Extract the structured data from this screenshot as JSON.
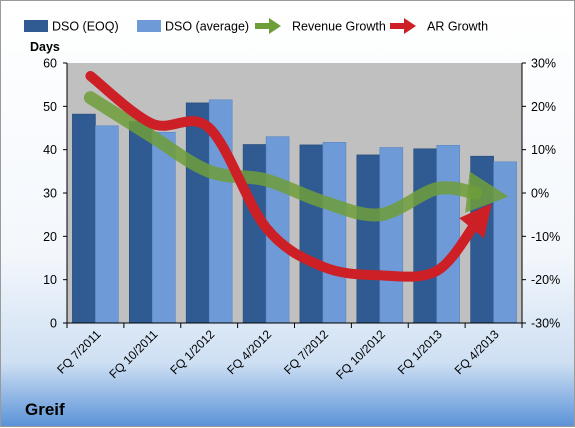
{
  "chart_data": {
    "type": "bar",
    "categories": [
      "FQ 7/2011",
      "FQ 10/2011",
      "FQ 1/2012",
      "FQ 4/2012",
      "FQ 7/2012",
      "FQ 10/2012",
      "FQ 1/2013",
      "FQ 4/2013"
    ],
    "series": [
      {
        "name": "DSO (EOQ)",
        "type": "bar",
        "axis": "left",
        "color": "#2f5b92",
        "values": [
          48.2,
          46.5,
          50.8,
          41.2,
          41.1,
          38.8,
          40.2,
          38.5
        ]
      },
      {
        "name": "DSO (average)",
        "type": "bar",
        "axis": "left",
        "color": "#6f9ad8",
        "values": [
          45.5,
          44.0,
          51.5,
          43.0,
          41.7,
          40.5,
          41.0,
          37.2
        ]
      },
      {
        "name": "Revenue Growth",
        "type": "line",
        "axis": "right",
        "color": "#6e9e3a",
        "values": [
          22,
          13,
          5,
          3,
          -2,
          -5,
          1,
          0
        ]
      },
      {
        "name": "AR Growth",
        "type": "line",
        "axis": "right",
        "color": "#cc1f26",
        "values": [
          27,
          16,
          15,
          -8,
          -17,
          -19,
          -18,
          -7
        ]
      }
    ],
    "ylabel": "Days",
    "ylim": [
      0,
      60
    ],
    "yticks": [
      "0",
      "10",
      "20",
      "30",
      "40",
      "50",
      "60"
    ],
    "y2lim": [
      -30,
      30
    ],
    "y2ticks": [
      "-30%",
      "-20%",
      "-10%",
      "0%",
      "10%",
      "20%",
      "30%"
    ],
    "grid": false,
    "legend": "top",
    "plot_background": "#c0c0c0"
  },
  "footer": {
    "company": "Greif"
  }
}
